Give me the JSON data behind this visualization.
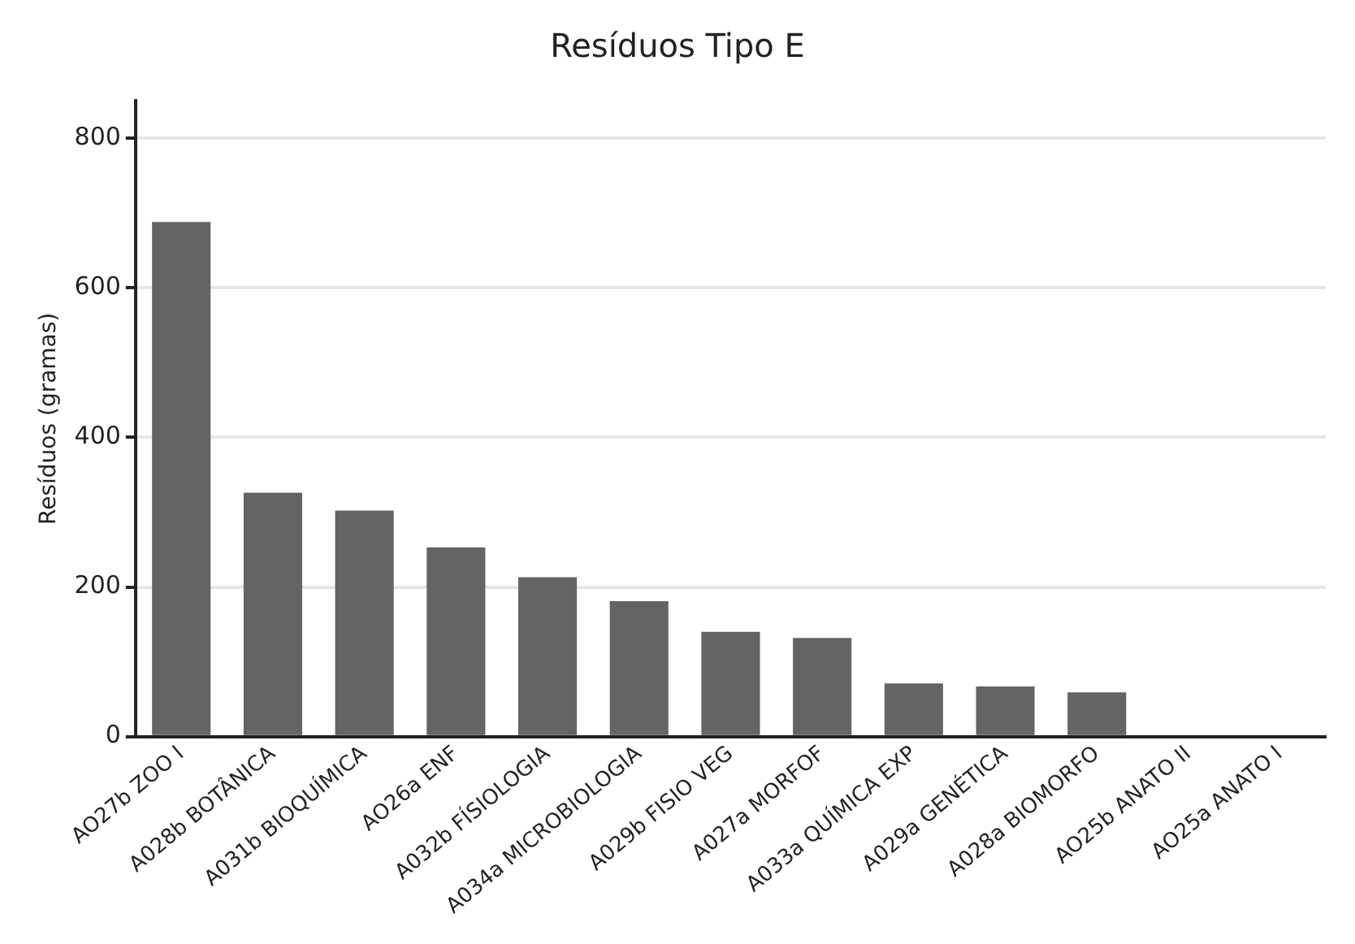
{
  "chart_data": {
    "type": "bar",
    "title": "Resíduos Tipo E",
    "ylabel": "Resíduos (gramas)",
    "categories": [
      "AO27b ZOO I",
      "A028b BOTÂNICA",
      "A031b BIOQUÍMICA",
      "AO26a ENF",
      "A032b FÍSIOLOGIA",
      "A034a MICROBIOLOGIA",
      "A029b FISIO VEG",
      "A027a MORFOF",
      "A033a QUÍMICA EXP",
      "A029a GENÉTICA",
      "A028a BIOMORFO",
      "AO25b ANATO II",
      "AO25a ANATO I"
    ],
    "values": [
      688,
      326,
      302,
      253,
      213,
      181,
      140,
      132,
      71,
      67,
      59,
      0,
      0
    ],
    "color": "#646464",
    "ylim": [
      0,
      850
    ],
    "yticks": [
      0,
      200,
      400,
      600,
      800
    ],
    "grid": "y",
    "legend": false
  }
}
